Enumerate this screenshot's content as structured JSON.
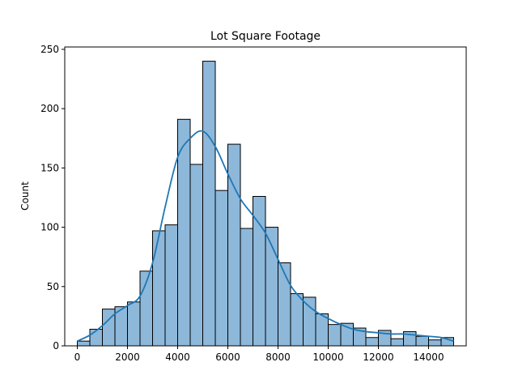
{
  "chart_data": {
    "type": "bar",
    "title": "Lot Square Footage",
    "xlabel": "",
    "ylabel": "Count",
    "xlim": [
      -500,
      15500
    ],
    "ylim": [
      0,
      252
    ],
    "x_ticks": [
      0,
      2000,
      4000,
      6000,
      8000,
      10000,
      12000,
      14000
    ],
    "y_ticks": [
      0,
      50,
      100,
      150,
      200,
      250
    ],
    "bin_width": 500,
    "bin_start": 0,
    "values": [
      4,
      14,
      31,
      33,
      37,
      63,
      97,
      102,
      191,
      153,
      240,
      131,
      170,
      99,
      126,
      100,
      70,
      44,
      41,
      27,
      18,
      19,
      15,
      7,
      13,
      6,
      12,
      8,
      5,
      7
    ],
    "kde": {
      "x": [
        0,
        500,
        1000,
        1500,
        2000,
        2500,
        3000,
        3500,
        4000,
        4500,
        5000,
        5500,
        6000,
        6500,
        7000,
        7500,
        8000,
        8500,
        9000,
        9500,
        10000,
        10500,
        11000,
        11500,
        12000,
        12500,
        13000,
        13500,
        14000,
        14500,
        15000
      ],
      "y": [
        4,
        9,
        17,
        27,
        34,
        42,
        70,
        117,
        159,
        175,
        181,
        168,
        145,
        124,
        110,
        95,
        73,
        51,
        38,
        29,
        23,
        18,
        14,
        12,
        11,
        10,
        10,
        9,
        8,
        7,
        4
      ]
    },
    "colors": {
      "bar_fill": "#8db8da",
      "bar_edge": "#000000",
      "kde_line": "#1f77b4"
    },
    "grid": false,
    "legend": "none"
  }
}
